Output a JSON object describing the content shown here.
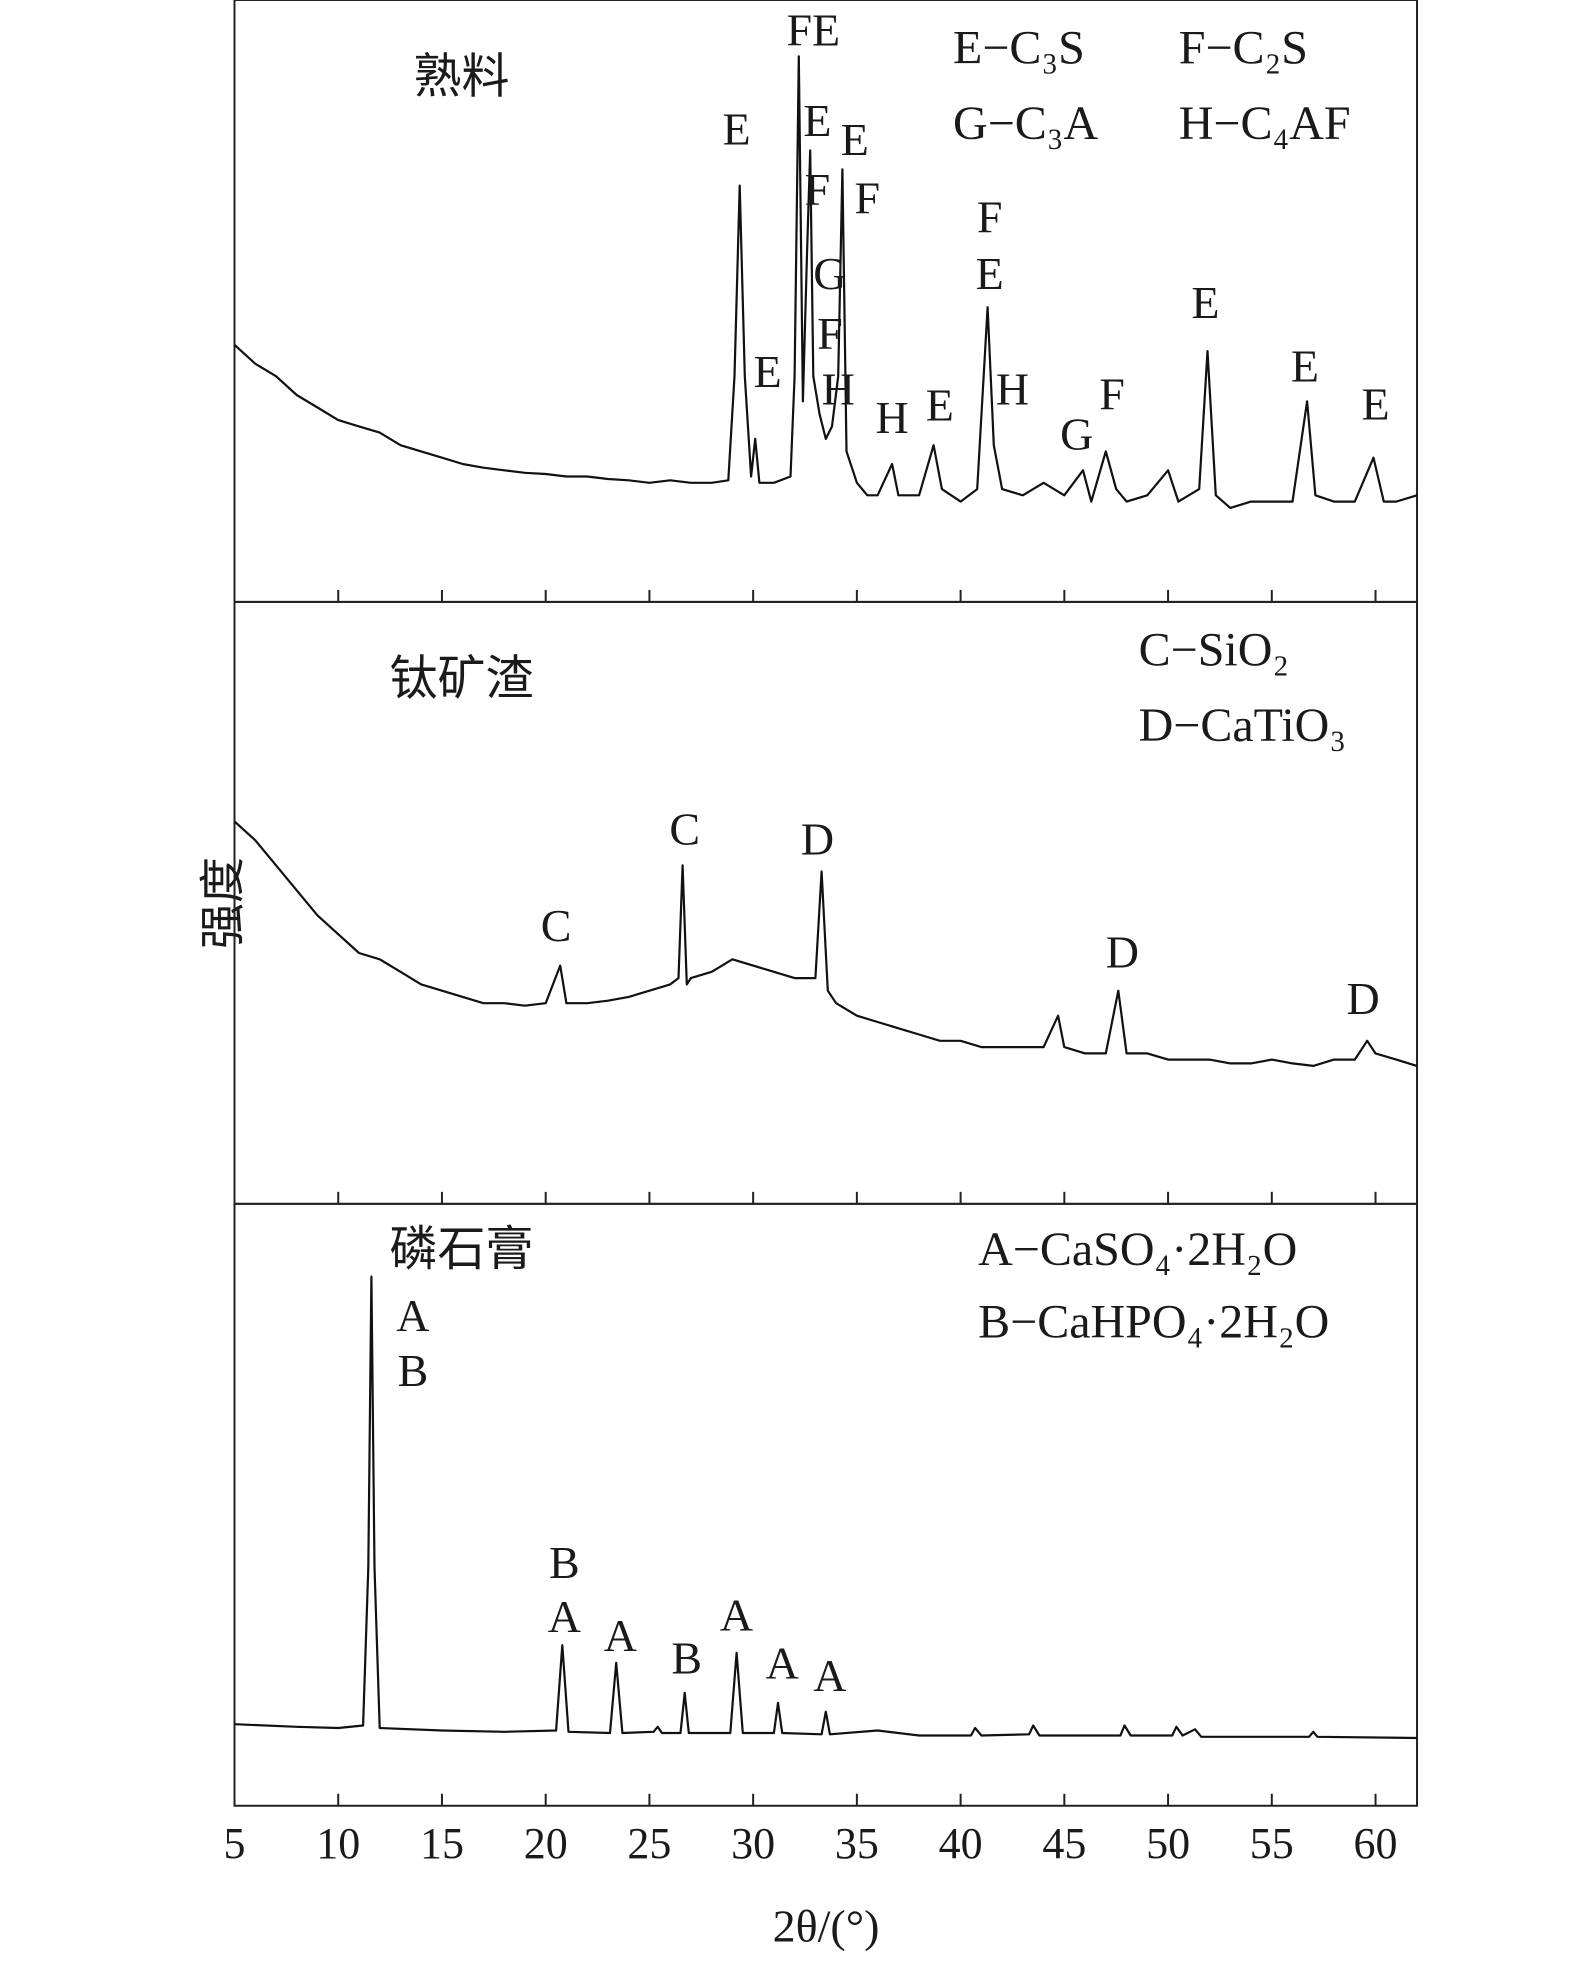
{
  "chart_data": [
    {
      "type": "line",
      "title": "熟料",
      "legend": [
        "E−C₃S",
        "F−C₂S",
        "G−C₃A",
        "H−C₄AF"
      ],
      "xlim": [
        5,
        62
      ],
      "ylim": [
        0,
        480
      ],
      "xticks": [
        5,
        10,
        15,
        20,
        25,
        30,
        35,
        40,
        45,
        50,
        55,
        60
      ],
      "x": [
        5,
        6,
        7,
        8,
        9,
        10,
        11,
        12,
        13,
        14,
        15,
        16,
        17,
        18,
        19,
        20,
        21,
        22,
        23,
        24,
        25,
        26,
        27,
        28,
        28.8,
        29.1,
        29.35,
        29.6,
        29.9,
        30.1,
        30.3,
        31,
        31.8,
        32,
        32.2,
        32.4,
        32.6,
        32.75,
        32.9,
        33.2,
        33.5,
        33.8,
        34.1,
        34.3,
        34.5,
        35,
        35.5,
        36,
        36.7,
        37,
        38,
        38.7,
        39.1,
        40,
        40.8,
        41.3,
        41.6,
        42,
        43,
        44,
        45,
        45.9,
        46.3,
        47,
        47.5,
        48,
        49,
        50,
        50.5,
        51.5,
        51.9,
        52.3,
        53,
        54,
        55,
        56,
        56.7,
        57.1,
        58,
        59,
        59.9,
        60.4,
        61,
        62
      ],
      "series": [
        {
          "color": "#111111",
          "values": [
            205,
            190,
            180,
            165,
            155,
            145,
            140,
            135,
            125,
            120,
            115,
            110,
            107,
            105,
            103,
            102,
            100,
            100,
            98,
            97,
            95,
            97,
            95,
            95,
            97,
            180,
            332,
            180,
            100,
            130,
            95,
            95,
            100,
            180,
            435,
            160,
            280,
            360,
            180,
            150,
            130,
            140,
            180,
            345,
            120,
            95,
            85,
            85,
            110,
            85,
            85,
            125,
            90,
            80,
            90,
            235,
            125,
            90,
            85,
            95,
            85,
            105,
            80,
            120,
            90,
            80,
            85,
            105,
            80,
            90,
            200,
            85,
            75,
            80,
            80,
            80,
            160,
            85,
            80,
            80,
            115,
            80,
            80,
            85
          ]
        }
      ],
      "annotations": [
        {
          "text": "E",
          "x": 29.2,
          "y": 373
        },
        {
          "text": "FE",
          "x": 32.9,
          "y": 452
        },
        {
          "text": "E",
          "x": 33.1,
          "y": 380
        },
        {
          "text": "E",
          "x": 34.9,
          "y": 365
        },
        {
          "text": "F",
          "x": 33.1,
          "y": 325
        },
        {
          "text": "F",
          "x": 35.5,
          "y": 318
        },
        {
          "text": "G",
          "x": 33.7,
          "y": 258
        },
        {
          "text": "F",
          "x": 33.7,
          "y": 210
        },
        {
          "text": "H",
          "x": 34.1,
          "y": 166
        },
        {
          "text": "E",
          "x": 30.7,
          "y": 180
        },
        {
          "text": "H",
          "x": 36.7,
          "y": 143
        },
        {
          "text": "E",
          "x": 39.0,
          "y": 153
        },
        {
          "text": "F",
          "x": 41.4,
          "y": 303
        },
        {
          "text": "E",
          "x": 41.4,
          "y": 258
        },
        {
          "text": "H",
          "x": 42.5,
          "y": 166
        },
        {
          "text": "G",
          "x": 45.6,
          "y": 130
        },
        {
          "text": "F",
          "x": 47.3,
          "y": 162
        },
        {
          "text": "E",
          "x": 51.8,
          "y": 235
        },
        {
          "text": "E",
          "x": 56.6,
          "y": 184
        },
        {
          "text": "E",
          "x": 60.0,
          "y": 154
        }
      ]
    },
    {
      "type": "line",
      "title": "钛矿渣",
      "ylabel": "强度",
      "legend": [
        "C−SiO₂",
        "D−CaTiO₃"
      ],
      "xlim": [
        5,
        62
      ],
      "ylim": [
        0,
        480
      ],
      "xticks": [
        5,
        10,
        15,
        20,
        25,
        30,
        35,
        40,
        45,
        50,
        55,
        60
      ],
      "x": [
        5,
        6,
        7,
        8,
        9,
        10,
        11,
        12,
        13,
        14,
        15,
        16,
        17,
        18,
        19,
        20,
        20.7,
        21,
        22,
        23,
        24,
        25,
        26,
        26.4,
        26.6,
        26.8,
        27,
        28,
        29,
        30,
        31,
        32,
        33,
        33.3,
        33.6,
        34,
        35,
        36,
        37,
        38,
        39,
        40,
        41,
        42,
        43,
        44,
        44.7,
        45,
        46,
        47,
        47.6,
        48,
        49,
        50,
        51,
        52,
        53,
        54,
        55,
        56,
        57,
        58,
        59,
        59.6,
        60,
        61,
        62
      ],
      "series": [
        {
          "color": "#111111",
          "values": [
            305,
            290,
            270,
            250,
            230,
            215,
            200,
            195,
            185,
            175,
            170,
            165,
            160,
            160,
            158,
            160,
            190,
            160,
            160,
            162,
            165,
            170,
            175,
            180,
            270,
            175,
            180,
            185,
            195,
            190,
            185,
            180,
            180,
            265,
            170,
            160,
            150,
            145,
            140,
            135,
            130,
            130,
            125,
            125,
            125,
            125,
            150,
            125,
            120,
            120,
            170,
            120,
            120,
            115,
            115,
            115,
            112,
            112,
            115,
            112,
            110,
            115,
            115,
            130,
            120,
            115,
            110
          ]
        }
      ],
      "annotations": [
        {
          "text": "C",
          "x": 20.5,
          "y": 218
        },
        {
          "text": "C",
          "x": 26.7,
          "y": 295
        },
        {
          "text": "D",
          "x": 33.1,
          "y": 287
        },
        {
          "text": "D",
          "x": 47.8,
          "y": 197
        },
        {
          "text": "D",
          "x": 59.4,
          "y": 160
        }
      ]
    },
    {
      "type": "line",
      "title": "磷石膏",
      "xlabel": "2θ/(°)",
      "legend": [
        "A−CaSO₄·2H₂O",
        "B−CaHPO₄·2H₂O"
      ],
      "xlim": [
        5,
        62
      ],
      "ylim": [
        0,
        480
      ],
      "xticks": [
        5,
        10,
        15,
        20,
        25,
        30,
        35,
        40,
        45,
        50,
        55,
        60
      ],
      "x": [
        5,
        8,
        10,
        11.2,
        11.45,
        11.6,
        11.75,
        12,
        15,
        18,
        20.5,
        20.8,
        21.1,
        23.1,
        23.4,
        23.7,
        25.2,
        25.4,
        25.6,
        26.5,
        26.7,
        26.9,
        28.9,
        29.2,
        29.5,
        31,
        31.2,
        31.4,
        33.3,
        33.5,
        33.7,
        36,
        38,
        40.5,
        40.7,
        41,
        43.3,
        43.5,
        43.8,
        47.7,
        47.9,
        48.2,
        50.2,
        50.4,
        50.7,
        51.3,
        51.6,
        56.8,
        57,
        57.2,
        62
      ],
      "series": [
        {
          "color": "#111111",
          "values": [
            65,
            63,
            62,
            64,
            190,
            422,
            190,
            62,
            60,
            59,
            60,
            128,
            59,
            58,
            114,
            58,
            59,
            63,
            58,
            58,
            90,
            58,
            58,
            122,
            58,
            58,
            82,
            58,
            57,
            75,
            57,
            60,
            56,
            56,
            62,
            56,
            57,
            64,
            56,
            56,
            64,
            56,
            56,
            63,
            56,
            61,
            55,
            55,
            59,
            55,
            54
          ]
        }
      ],
      "annotations": [
        {
          "text": "A",
          "x": 13.6,
          "y": 387
        },
        {
          "text": "B",
          "x": 13.6,
          "y": 343
        },
        {
          "text": "B",
          "x": 20.9,
          "y": 190
        },
        {
          "text": "A",
          "x": 20.9,
          "y": 147
        },
        {
          "text": "A",
          "x": 23.6,
          "y": 132
        },
        {
          "text": "B",
          "x": 26.8,
          "y": 114
        },
        {
          "text": "A",
          "x": 29.2,
          "y": 148
        },
        {
          "text": "A",
          "x": 31.4,
          "y": 110
        },
        {
          "text": "A",
          "x": 33.7,
          "y": 100
        }
      ]
    }
  ]
}
